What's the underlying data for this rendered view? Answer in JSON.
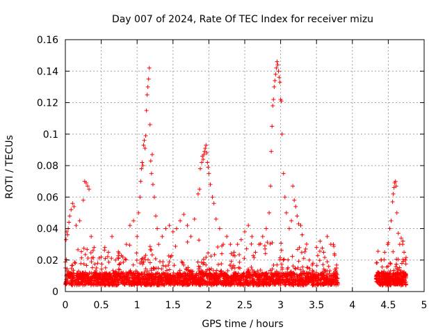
{
  "chart_data": {
    "type": "scatter",
    "title": "Day 007 of 2024, Rate Of TEC Index for receiver mizu",
    "xlabel": "GPS time / hours",
    "ylabel": "ROTI / TECUs",
    "xlim": [
      0,
      5
    ],
    "ylim": [
      0,
      0.16
    ],
    "grid": true,
    "marker": "+",
    "color": "#ff0000",
    "x_ticks": [
      "0",
      "0.5",
      "1",
      "1.5",
      "2",
      "2.5",
      "3",
      "3.5",
      "4",
      "4.5",
      "5"
    ],
    "y_ticks": [
      "0",
      "0.02",
      "0.04",
      "0.06",
      "0.08",
      "0.1",
      "0.12",
      "0.14",
      "0.16"
    ],
    "data_gap": [
      3.8,
      4.33
    ],
    "series": [
      {
        "name": "ROTI",
        "points": [
          [
            0.01,
            0.033
          ],
          [
            0.02,
            0.038
          ],
          [
            0.03,
            0.036
          ],
          [
            0.04,
            0.04
          ],
          [
            0.05,
            0.044
          ],
          [
            0.06,
            0.048
          ],
          [
            0.08,
            0.052
          ],
          [
            0.1,
            0.056
          ],
          [
            0.12,
            0.054
          ],
          [
            0.15,
            0.042
          ],
          [
            0.2,
            0.045
          ],
          [
            0.25,
            0.058
          ],
          [
            0.27,
            0.07
          ],
          [
            0.29,
            0.069
          ],
          [
            0.31,
            0.067
          ],
          [
            0.33,
            0.065
          ],
          [
            0.36,
            0.035
          ],
          [
            0.4,
            0.028
          ],
          [
            0.45,
            0.018
          ],
          [
            0.5,
            0.022
          ],
          [
            0.55,
            0.028
          ],
          [
            0.6,
            0.025
          ],
          [
            0.65,
            0.035
          ],
          [
            0.7,
            0.02
          ],
          [
            0.75,
            0.017
          ],
          [
            0.8,
            0.022
          ],
          [
            0.85,
            0.03
          ],
          [
            0.9,
            0.042
          ],
          [
            0.95,
            0.045
          ],
          [
            1.0,
            0.035
          ],
          [
            1.02,
            0.05
          ],
          [
            1.04,
            0.06
          ],
          [
            1.05,
            0.07
          ],
          [
            1.06,
            0.078
          ],
          [
            1.07,
            0.082
          ],
          [
            1.08,
            0.08
          ],
          [
            1.09,
            0.093
          ],
          [
            1.1,
            0.096
          ],
          [
            1.11,
            0.091
          ],
          [
            1.12,
            0.099
          ],
          [
            1.13,
            0.115
          ],
          [
            1.14,
            0.125
          ],
          [
            1.15,
            0.13
          ],
          [
            1.16,
            0.135
          ],
          [
            1.17,
            0.142
          ],
          [
            1.18,
            0.106
          ],
          [
            1.19,
            0.083
          ],
          [
            1.2,
            0.075
          ],
          [
            1.21,
            0.087
          ],
          [
            1.22,
            0.068
          ],
          [
            1.24,
            0.06
          ],
          [
            1.26,
            0.048
          ],
          [
            1.28,
            0.04
          ],
          [
            1.3,
            0.03
          ],
          [
            1.35,
            0.035
          ],
          [
            1.4,
            0.04
          ],
          [
            1.45,
            0.042
          ],
          [
            1.5,
            0.038
          ],
          [
            1.55,
            0.04
          ],
          [
            1.6,
            0.045
          ],
          [
            1.65,
            0.049
          ],
          [
            1.7,
            0.042
          ],
          [
            1.75,
            0.035
          ],
          [
            1.8,
            0.046
          ],
          [
            1.85,
            0.062
          ],
          [
            1.87,
            0.065
          ],
          [
            1.88,
            0.078
          ],
          [
            1.9,
            0.082
          ],
          [
            1.91,
            0.086
          ],
          [
            1.92,
            0.084
          ],
          [
            1.93,
            0.087
          ],
          [
            1.94,
            0.089
          ],
          [
            1.95,
            0.091
          ],
          [
            1.96,
            0.093
          ],
          [
            1.97,
            0.088
          ],
          [
            1.98,
            0.082
          ],
          [
            1.99,
            0.079
          ],
          [
            2.0,
            0.075
          ],
          [
            2.02,
            0.068
          ],
          [
            2.05,
            0.06
          ],
          [
            2.07,
            0.056
          ],
          [
            2.1,
            0.046
          ],
          [
            2.15,
            0.04
          ],
          [
            2.2,
            0.03
          ],
          [
            2.25,
            0.035
          ],
          [
            2.3,
            0.03
          ],
          [
            2.35,
            0.025
          ],
          [
            2.4,
            0.03
          ],
          [
            2.45,
            0.033
          ],
          [
            2.5,
            0.038
          ],
          [
            2.55,
            0.042
          ],
          [
            2.6,
            0.035
          ],
          [
            2.65,
            0.025
          ],
          [
            2.7,
            0.03
          ],
          [
            2.75,
            0.035
          ],
          [
            2.8,
            0.04
          ],
          [
            2.84,
            0.05
          ],
          [
            2.86,
            0.067
          ],
          [
            2.87,
            0.089
          ],
          [
            2.88,
            0.105
          ],
          [
            2.89,
            0.118
          ],
          [
            2.9,
            0.122
          ],
          [
            2.91,
            0.13
          ],
          [
            2.92,
            0.134
          ],
          [
            2.93,
            0.138
          ],
          [
            2.94,
            0.142
          ],
          [
            2.95,
            0.146
          ],
          [
            2.96,
            0.144
          ],
          [
            2.97,
            0.14
          ],
          [
            2.98,
            0.136
          ],
          [
            2.99,
            0.133
          ],
          [
            3.0,
            0.122
          ],
          [
            3.01,
            0.121
          ],
          [
            3.02,
            0.1
          ],
          [
            3.04,
            0.075
          ],
          [
            3.06,
            0.06
          ],
          [
            3.08,
            0.05
          ],
          [
            3.12,
            0.04
          ],
          [
            3.15,
            0.045
          ],
          [
            3.17,
            0.067
          ],
          [
            3.19,
            0.058
          ],
          [
            3.21,
            0.054
          ],
          [
            3.23,
            0.048
          ],
          [
            3.25,
            0.043
          ],
          [
            3.28,
            0.042
          ],
          [
            3.3,
            0.036
          ],
          [
            3.35,
            0.027
          ],
          [
            3.4,
            0.02
          ],
          [
            3.45,
            0.018
          ],
          [
            3.5,
            0.028
          ],
          [
            3.55,
            0.032
          ],
          [
            3.6,
            0.025
          ],
          [
            3.65,
            0.035
          ],
          [
            3.7,
            0.03
          ],
          [
            3.75,
            0.024
          ],
          [
            3.78,
            0.015
          ],
          [
            4.35,
            0.012
          ],
          [
            4.4,
            0.02
          ],
          [
            4.45,
            0.025
          ],
          [
            4.5,
            0.031
          ],
          [
            4.52,
            0.04
          ],
          [
            4.54,
            0.045
          ],
          [
            4.56,
            0.057
          ],
          [
            4.57,
            0.062
          ],
          [
            4.58,
            0.066
          ],
          [
            4.59,
            0.069
          ],
          [
            4.6,
            0.07
          ],
          [
            4.61,
            0.067
          ],
          [
            4.62,
            0.05
          ],
          [
            4.64,
            0.037
          ],
          [
            4.66,
            0.03
          ],
          [
            4.68,
            0.034
          ],
          [
            4.7,
            0.03
          ],
          [
            4.72,
            0.025
          ],
          [
            4.74,
            0.02
          ]
        ]
      }
    ]
  }
}
